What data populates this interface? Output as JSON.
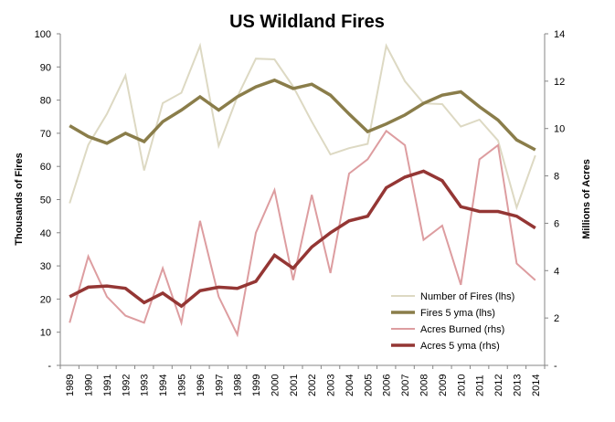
{
  "chart_data": {
    "type": "line",
    "title": "US Wildland Fires",
    "ylabel_left": "Thousands of Fires",
    "ylabel_right": "Millions of Acres",
    "x": [
      "1989",
      "1990",
      "1991",
      "1992",
      "1993",
      "1994",
      "1995",
      "1996",
      "1997",
      "1998",
      "1999",
      "2000",
      "2001",
      "2002",
      "2003",
      "2004",
      "2005",
      "2006",
      "2007",
      "2008",
      "2009",
      "2010",
      "2011",
      "2012",
      "2013",
      "2014"
    ],
    "ylim_left": [
      0,
      100
    ],
    "yticks_left": [
      "-",
      "10",
      "20",
      "30",
      "40",
      "50",
      "60",
      "70",
      "80",
      "90",
      "100"
    ],
    "ylim_right": [
      0,
      14
    ],
    "yticks_right": [
      "-",
      "2",
      "4",
      "6",
      "8",
      "10",
      "12",
      "14"
    ],
    "legend_position": "lower-right",
    "series": [
      {
        "name": "Number of Fires (lhs)",
        "axis": "left",
        "color": "#ddd9c3",
        "width": 2,
        "values": [
          48.9,
          66.5,
          75.8,
          87.4,
          58.8,
          79.1,
          82.2,
          96.4,
          66.2,
          81.0,
          92.5,
          92.3,
          84.1,
          73.5,
          63.6,
          65.5,
          66.8,
          96.4,
          85.7,
          79.0,
          78.8,
          72.0,
          74.1,
          67.8,
          47.6,
          63.3
        ]
      },
      {
        "name": "Fires 5 yma (lhs)",
        "axis": "left",
        "color": "#8a7d4a",
        "width": 3.5,
        "values": [
          72.3,
          69.0,
          67.0,
          70.0,
          67.5,
          73.5,
          77.0,
          81.0,
          77.0,
          81.0,
          84.0,
          86.0,
          83.5,
          84.8,
          81.5,
          75.8,
          70.5,
          72.8,
          75.5,
          79.0,
          81.5,
          82.5,
          78.0,
          74.0,
          68.0,
          65.0
        ]
      },
      {
        "name": "Acres Burned (rhs)",
        "axis": "right",
        "color": "#dd9da0",
        "width": 2,
        "values": [
          1.8,
          4.6,
          2.9,
          2.1,
          1.8,
          4.1,
          1.8,
          6.1,
          2.9,
          1.3,
          5.6,
          7.4,
          3.6,
          7.2,
          3.9,
          8.1,
          8.7,
          9.9,
          9.3,
          5.3,
          5.9,
          3.4,
          8.7,
          9.3,
          4.3,
          3.6
        ]
      },
      {
        "name": "Acres 5 yma (rhs)",
        "axis": "right",
        "color": "#943634",
        "width": 3.5,
        "values": [
          2.9,
          3.3,
          3.35,
          3.25,
          2.65,
          3.05,
          2.5,
          3.15,
          3.3,
          3.25,
          3.55,
          4.65,
          4.1,
          5.0,
          5.6,
          6.1,
          6.3,
          7.5,
          7.95,
          8.2,
          7.8,
          6.7,
          6.5,
          6.5,
          6.3,
          5.8
        ]
      }
    ]
  }
}
